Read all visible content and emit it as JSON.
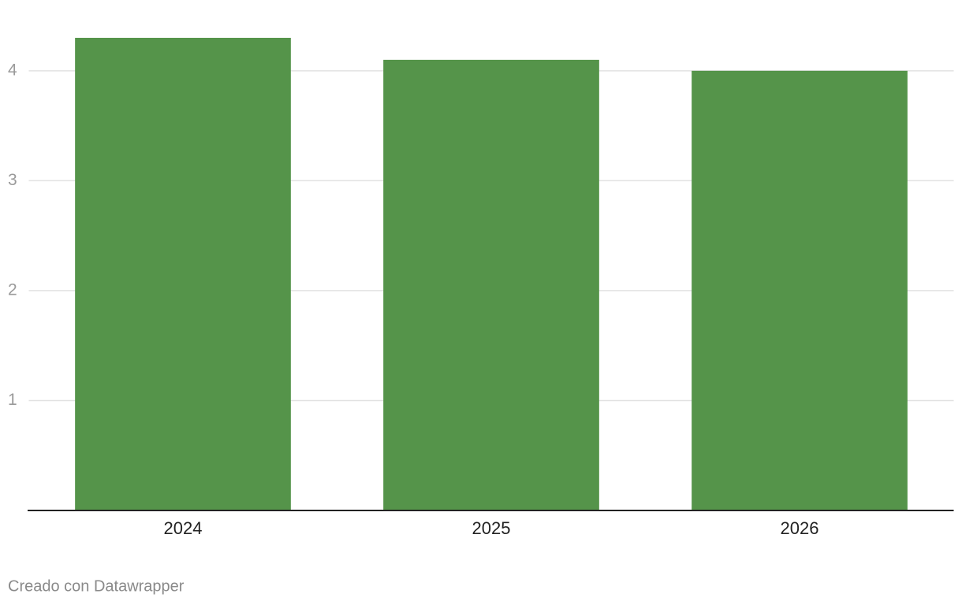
{
  "chart_data": {
    "type": "bar",
    "categories": [
      "2024",
      "2025",
      "2026"
    ],
    "values": [
      4.3,
      4.1,
      4.0
    ],
    "color": "#55944a",
    "ylim": [
      0,
      4.3
    ],
    "yticks": [
      1,
      2,
      3,
      4
    ],
    "grid": true,
    "credit": "Creado con Datawrapper"
  }
}
